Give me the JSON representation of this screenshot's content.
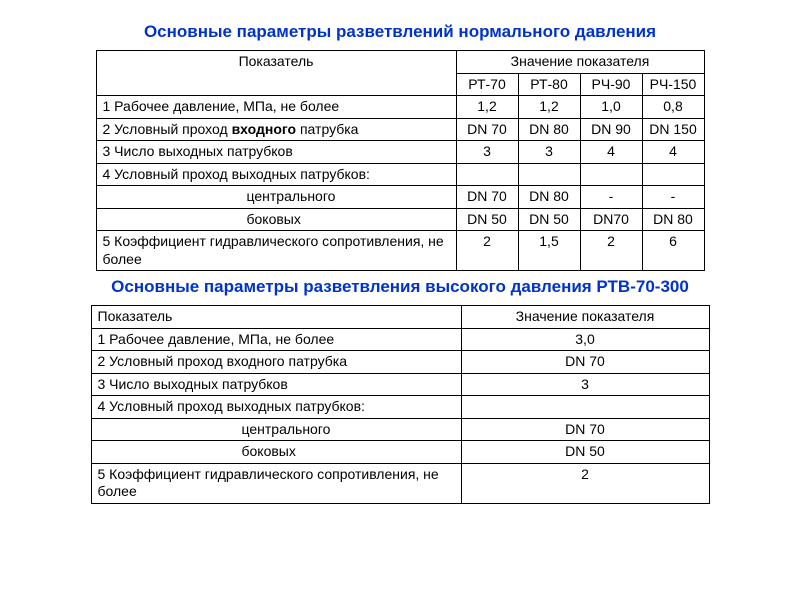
{
  "section1": {
    "title": "Основные параметры разветвлений нормального давления",
    "header1": "Показатель",
    "header2": "Значение показателя",
    "models": [
      "РТ-70",
      "РТ-80",
      "РЧ-90",
      "РЧ-150"
    ],
    "rows": [
      {
        "label_pre": "1 Рабочее давление, МПа, не более",
        "bold": "",
        "label_post": "",
        "vals": [
          "1,2",
          "1,2",
          "1,0",
          "0,8"
        ]
      },
      {
        "label_pre": "2 Условный проход ",
        "bold": "входного",
        "label_post": " патрубка",
        "vals": [
          "DN 70",
          "DN 80",
          "DN 90",
          "DN 150"
        ]
      },
      {
        "label_pre": "3 Число выходных патрубков",
        "bold": "",
        "label_post": "",
        "vals": [
          "3",
          "3",
          "4",
          "4"
        ]
      },
      {
        "label_pre": "4 Условный проход выходных патрубков:",
        "bold": "",
        "label_post": "",
        "vals": [
          "",
          "",
          "",
          ""
        ]
      },
      {
        "label_pre": "центрального",
        "bold": "",
        "label_post": "",
        "sub": true,
        "vals": [
          "DN 70",
          "DN 80",
          "-",
          "-"
        ]
      },
      {
        "label_pre": "боковых",
        "bold": "",
        "label_post": "",
        "sub": true,
        "vals": [
          "DN 50",
          "DN 50",
          "DN70",
          "DN 80"
        ]
      },
      {
        "label_pre": "5 Коэффициент гидравлического сопротивления, не более",
        "bold": "",
        "label_post": "",
        "vals": [
          "2",
          "1,5",
          "2",
          "6"
        ]
      }
    ]
  },
  "section2": {
    "title": "Основные параметры разветвления высокого давления РТВ-70-300",
    "header1": "Показатель",
    "header2": "Значение показателя",
    "rows": [
      {
        "label": "1 Рабочее давление, МПа, не более",
        "val": "3,0"
      },
      {
        "label": "2 Условный проход входного патрубка",
        "val": "DN 70"
      },
      {
        "label": "3 Число выходных патрубков",
        "val": "3"
      },
      {
        "label": "4 Условный проход выходных патрубков:",
        "val": ""
      },
      {
        "label": "центрального",
        "sub": true,
        "val": "DN 70"
      },
      {
        "label": "боковых",
        "sub": true,
        "val": "DN 50"
      },
      {
        "label": "5 Коэффициент гидравлического сопротивления, не более",
        "val": "2"
      }
    ]
  }
}
